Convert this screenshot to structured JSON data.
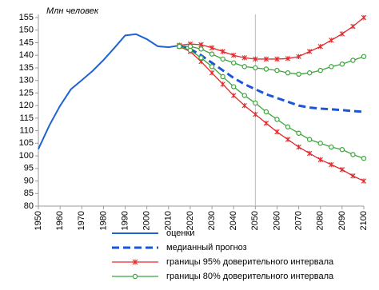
{
  "chart_data": {
    "type": "line",
    "y_label": "Млн человек",
    "xlim": [
      1950,
      2100
    ],
    "xticks": [
      1950,
      1960,
      1970,
      1980,
      1990,
      2000,
      2010,
      2020,
      2030,
      2040,
      2050,
      2060,
      2070,
      2080,
      2090,
      2100
    ],
    "ylim": [
      80,
      155
    ],
    "yticks": [
      80,
      85,
      90,
      95,
      100,
      105,
      110,
      115,
      120,
      125,
      130,
      135,
      140,
      145,
      150,
      155
    ],
    "reference_x": 2050,
    "series": [
      {
        "name": "оценки",
        "color": "#1f63d2",
        "dash": false,
        "marker": "none",
        "x": [
          1950,
          1955,
          1960,
          1965,
          1970,
          1975,
          1980,
          1985,
          1990,
          1995,
          2000,
          2005,
          2010,
          2015
        ],
        "values": [
          102.7,
          112,
          119.9,
          126.5,
          130.1,
          133.8,
          138.1,
          142.9,
          147.9,
          148.4,
          146.4,
          143.6,
          143.2,
          143.9
        ]
      },
      {
        "name": "медианный прогноз",
        "color": "#1a56d6",
        "dash": true,
        "marker": "none",
        "x": [
          2015,
          2020,
          2025,
          2030,
          2035,
          2040,
          2045,
          2050,
          2055,
          2060,
          2065,
          2070,
          2075,
          2080,
          2085,
          2090,
          2095,
          2100
        ],
        "values": [
          143.9,
          142.5,
          140,
          137,
          134,
          131,
          128.5,
          126.5,
          124.5,
          123,
          121.5,
          120,
          119.2,
          118.8,
          118.5,
          118.2,
          117.8,
          117.5
        ]
      },
      {
        "name": "границы 95% доверительного интервала",
        "color": "#e5282a",
        "dash": false,
        "marker": "x",
        "x": [
          2015,
          2020,
          2025,
          2030,
          2035,
          2040,
          2045,
          2050,
          2055,
          2060,
          2065,
          2070,
          2075,
          2080,
          2085,
          2090,
          2095,
          2100
        ],
        "values": [
          144,
          144.5,
          144.2,
          143,
          141.5,
          140,
          139,
          138.5,
          138.5,
          138.5,
          138.7,
          139.5,
          141.5,
          143.5,
          146,
          148.5,
          151.5,
          155
        ]
      },
      {
        "color": "#e5282a",
        "dash": false,
        "marker": "x",
        "x": [
          2015,
          2020,
          2025,
          2030,
          2035,
          2040,
          2045,
          2050,
          2055,
          2060,
          2065,
          2070,
          2075,
          2080,
          2085,
          2090,
          2095,
          2100
        ],
        "values": [
          143.5,
          141.5,
          137.5,
          133,
          128.5,
          124,
          120,
          116.5,
          113,
          109.5,
          106.5,
          103.5,
          101,
          98.5,
          96.5,
          94.5,
          92,
          90
        ]
      },
      {
        "name": "границы 80% доверительного интервала",
        "color": "#3aa53a",
        "dash": false,
        "marker": "circle",
        "x": [
          2015,
          2020,
          2025,
          2030,
          2035,
          2040,
          2045,
          2050,
          2055,
          2060,
          2065,
          2070,
          2075,
          2080,
          2085,
          2090,
          2095,
          2100
        ],
        "values": [
          143.8,
          143.5,
          142.5,
          140.5,
          138.5,
          137,
          135.5,
          135,
          134.5,
          134,
          133,
          132.5,
          133,
          134,
          135.5,
          136.5,
          138,
          139.5
        ]
      },
      {
        "color": "#3aa53a",
        "dash": false,
        "marker": "circle",
        "x": [
          2015,
          2020,
          2025,
          2030,
          2035,
          2040,
          2045,
          2050,
          2055,
          2060,
          2065,
          2070,
          2075,
          2080,
          2085,
          2090,
          2095,
          2100
        ],
        "values": [
          143.5,
          142,
          139,
          135.5,
          131.5,
          127.5,
          124,
          121,
          117.5,
          114.5,
          111.5,
          109,
          106.5,
          105,
          103.5,
          102.5,
          100.5,
          99
        ]
      }
    ]
  }
}
